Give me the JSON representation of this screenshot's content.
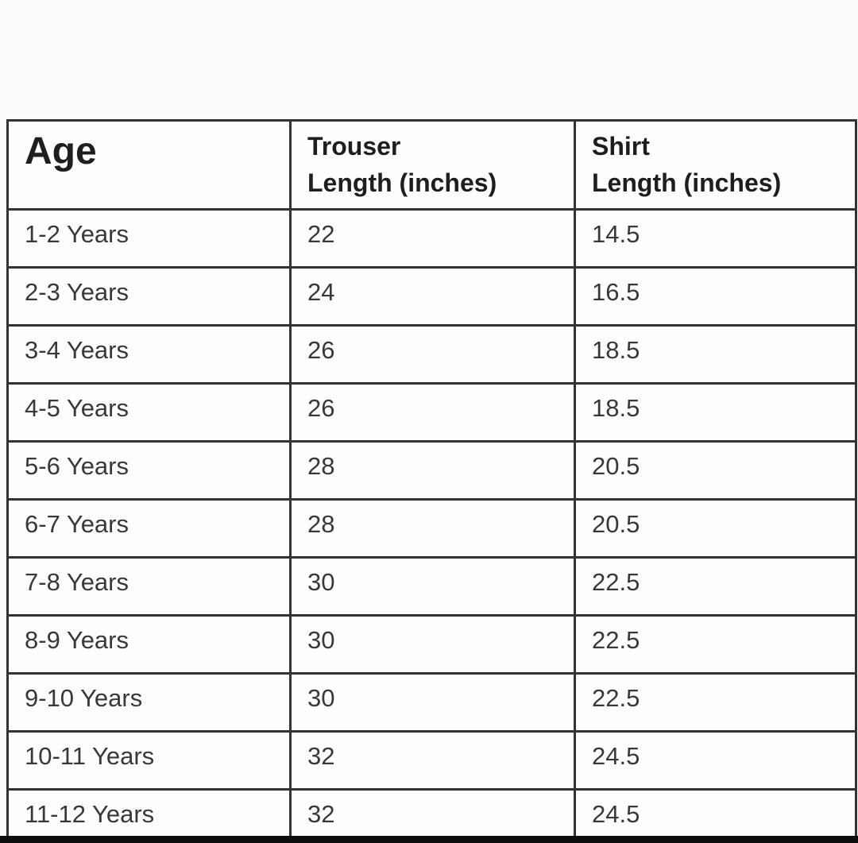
{
  "page": {
    "background_color": "#fcfcfc",
    "bottom_bar_color": "#0d0d0d",
    "table_border_color": "#333333"
  },
  "table": {
    "headers": [
      {
        "line1": "Age",
        "line2": ""
      },
      {
        "line1": "Trouser",
        "line2": "Length (inches)"
      },
      {
        "line1": "Shirt",
        "line2": "Length (inches)"
      }
    ],
    "rows": [
      {
        "age": "1-2 Years",
        "trouser": "22",
        "shirt": "14.5"
      },
      {
        "age": "2-3 Years",
        "trouser": "24",
        "shirt": "16.5"
      },
      {
        "age": "3-4 Years",
        "trouser": "26",
        "shirt": "18.5"
      },
      {
        "age": "4-5 Years",
        "trouser": "26",
        "shirt": "18.5"
      },
      {
        "age": "5-6 Years",
        "trouser": "28",
        "shirt": "20.5"
      },
      {
        "age": "6-7 Years",
        "trouser": "28",
        "shirt": "20.5"
      },
      {
        "age": "7-8 Years",
        "trouser": "30",
        "shirt": "22.5"
      },
      {
        "age": "8-9 Years",
        "trouser": "30",
        "shirt": "22.5"
      },
      {
        "age": "9-10 Years",
        "trouser": "30",
        "shirt": "22.5"
      },
      {
        "age": "10-11 Years",
        "trouser": "32",
        "shirt": "24.5"
      },
      {
        "age": "11-12 Years",
        "trouser": "32",
        "shirt": "24.5"
      }
    ]
  },
  "chart_data": {
    "type": "table",
    "columns": [
      "Age",
      "Trouser Length (inches)",
      "Shirt Length (inches)"
    ],
    "rows": [
      [
        "1-2 Years",
        22,
        14.5
      ],
      [
        "2-3 Years",
        24,
        16.5
      ],
      [
        "3-4 Years",
        26,
        18.5
      ],
      [
        "4-5 Years",
        26,
        18.5
      ],
      [
        "5-6 Years",
        28,
        20.5
      ],
      [
        "6-7 Years",
        28,
        20.5
      ],
      [
        "7-8 Years",
        30,
        22.5
      ],
      [
        "8-9 Years",
        30,
        22.5
      ],
      [
        "9-10 Years",
        30,
        22.5
      ],
      [
        "10-11 Years",
        32,
        24.5
      ],
      [
        "11-12 Years",
        32,
        24.5
      ]
    ],
    "title": "",
    "layout_hints": {
      "grid": true,
      "header_row": true,
      "columns_equal_width": true
    }
  }
}
